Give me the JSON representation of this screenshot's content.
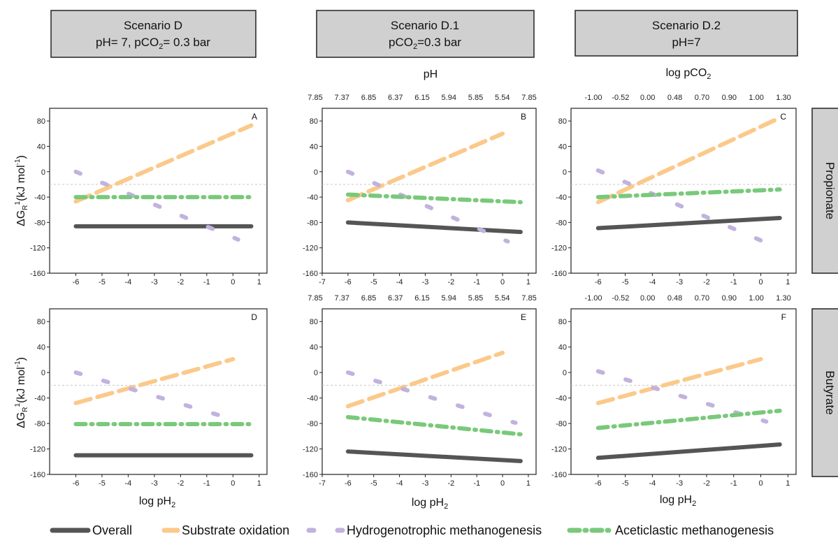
{
  "headers": [
    {
      "title": "Scenario D",
      "line2_pre": "pH= 7, pCO",
      "line2_sub": "2",
      "line2_post": "= 0.3 bar"
    },
    {
      "title": "Scenario D.1",
      "line2_pre": "pCO",
      "line2_sub": "2",
      "line2_post": "=0.3 bar"
    },
    {
      "title": "Scenario D.2",
      "line2_pre": "pH=7",
      "line2_sub": "",
      "line2_post": ""
    }
  ],
  "top_axis_titles": {
    "ph": "pH",
    "logpco2_pre": "log pCO",
    "logpco2_sub": "2"
  },
  "top_ticks": {
    "ph": [
      "7.85",
      "7.37",
      "6.85",
      "6.37",
      "6.15",
      "5.94",
      "5.85",
      "5.54",
      "7.85"
    ],
    "pco2": [
      "-1.00",
      "-0.52",
      "0.00",
      "0.48",
      "0.70",
      "0.90",
      "1.00",
      "1.30"
    ]
  },
  "row_labels": [
    "Propionate",
    "Butyrate"
  ],
  "ylabel": {
    "pre": "ΔG",
    "sub": "R",
    "sup": "1",
    "post": "(kJ mol",
    "sup2": "-1",
    "end": ")"
  },
  "xlabel": {
    "pre": "log pH",
    "sub": "2"
  },
  "legend": [
    {
      "label": "Overall",
      "color": "#555555",
      "style": "solid"
    },
    {
      "label": "Substrate oxidation",
      "color": "#fbc98a",
      "style": "dash"
    },
    {
      "label": "Hydrogenotrophic methanogenesis",
      "color": "#c1b2de",
      "style": "dot"
    },
    {
      "label": "Aceticlastic methanogenesis",
      "color": "#79c97a",
      "style": "dashdot"
    }
  ],
  "chart_data": [
    {
      "panel": "A",
      "type": "line",
      "xlabel": "",
      "ylabel": "",
      "xticks_shown": [
        -6,
        -5,
        -4,
        -3,
        -2,
        -1,
        0,
        1
      ],
      "ylim": [
        -160,
        100
      ],
      "yticks": [
        80,
        40,
        0,
        -40,
        -80,
        -120,
        -160
      ],
      "reference_line_y": -20,
      "series": [
        {
          "name": "Overall",
          "x": [
            -6,
            0.7
          ],
          "y": [
            -86,
            -86
          ]
        },
        {
          "name": "Substrate oxidation",
          "x": [
            -6,
            0.7
          ],
          "y": [
            -47,
            73
          ]
        },
        {
          "name": "Hydrogenotrophic methanogenesis",
          "x": [
            -6,
            0.2
          ],
          "y": [
            0,
            -107
          ]
        },
        {
          "name": "Aceticlastic methanogenesis",
          "x": [
            -6,
            0.7
          ],
          "y": [
            -40,
            -40
          ]
        }
      ]
    },
    {
      "panel": "B",
      "type": "line",
      "xticks_shown": [
        -7,
        -6,
        -5,
        -4,
        -3,
        -2,
        -1,
        0,
        1
      ],
      "ylim": [
        -160,
        100
      ],
      "yticks": [
        80,
        40,
        0,
        -40,
        -80,
        -120,
        -160
      ],
      "reference_line_y": -20,
      "series": [
        {
          "name": "Overall",
          "x": [
            -6,
            0.7
          ],
          "y": [
            -80,
            -95
          ]
        },
        {
          "name": "Substrate oxidation",
          "x": [
            -6,
            0.0
          ],
          "y": [
            -45,
            60
          ]
        },
        {
          "name": "Hydrogenotrophic methanogenesis",
          "x": [
            -6,
            0.2
          ],
          "y": [
            0,
            -110
          ]
        },
        {
          "name": "Aceticlastic methanogenesis",
          "x": [
            -6,
            0.7
          ],
          "y": [
            -36,
            -48
          ]
        }
      ]
    },
    {
      "panel": "C",
      "type": "line",
      "xticks_shown": [
        -6,
        -5,
        -4,
        -3,
        -2,
        -1,
        0,
        1
      ],
      "ylim": [
        -160,
        100
      ],
      "yticks": [
        80,
        40,
        0,
        -40,
        -80,
        -120,
        -160
      ],
      "reference_line_y": -20,
      "series": [
        {
          "name": "Overall",
          "x": [
            -6,
            0.7
          ],
          "y": [
            -89,
            -73
          ]
        },
        {
          "name": "Substrate oxidation",
          "x": [
            -6,
            0.7
          ],
          "y": [
            -48,
            85
          ]
        },
        {
          "name": "Hydrogenotrophic methanogenesis",
          "x": [
            -6,
            0.2
          ],
          "y": [
            2,
            -112
          ]
        },
        {
          "name": "Aceticlastic methanogenesis",
          "x": [
            -6,
            0.7
          ],
          "y": [
            -40,
            -28
          ]
        }
      ]
    },
    {
      "panel": "D",
      "type": "line",
      "xticks_shown": [
        -6,
        -5,
        -4,
        -3,
        -2,
        -1,
        0,
        1
      ],
      "ylim": [
        -160,
        100
      ],
      "yticks": [
        80,
        40,
        0,
        -40,
        -80,
        -120,
        -160
      ],
      "reference_line_y": -20,
      "series": [
        {
          "name": "Overall",
          "x": [
            -6,
            0.7
          ],
          "y": [
            -130,
            -130
          ]
        },
        {
          "name": "Substrate oxidation",
          "x": [
            -6,
            0.0
          ],
          "y": [
            -48,
            21
          ]
        },
        {
          "name": "Hydrogenotrophic methanogenesis",
          "x": [
            -6,
            0.2
          ],
          "y": [
            0,
            -76
          ]
        },
        {
          "name": "Aceticlastic methanogenesis",
          "x": [
            -6,
            0.7
          ],
          "y": [
            -81,
            -81
          ]
        }
      ]
    },
    {
      "panel": "E",
      "type": "line",
      "xticks_shown": [
        -7,
        -6,
        -5,
        -4,
        -3,
        -2,
        -1,
        0,
        1
      ],
      "ylim": [
        -160,
        100
      ],
      "yticks": [
        80,
        40,
        0,
        -40,
        -80,
        -120,
        -160
      ],
      "reference_line_y": -20,
      "series": [
        {
          "name": "Overall",
          "x": [
            -6,
            0.7
          ],
          "y": [
            -124,
            -139
          ]
        },
        {
          "name": "Substrate oxidation",
          "x": [
            -6,
            0.0
          ],
          "y": [
            -53,
            31
          ]
        },
        {
          "name": "Hydrogenotrophic methanogenesis",
          "x": [
            -6,
            0.5
          ],
          "y": [
            0,
            -79
          ]
        },
        {
          "name": "Aceticlastic methanogenesis",
          "x": [
            -6,
            0.7
          ],
          "y": [
            -70,
            -97
          ]
        }
      ]
    },
    {
      "panel": "F",
      "type": "line",
      "xticks_shown": [
        -6,
        -5,
        -4,
        -3,
        -2,
        -1,
        0,
        1
      ],
      "ylim": [
        -160,
        100
      ],
      "yticks": [
        80,
        40,
        0,
        -40,
        -80,
        -120,
        -160
      ],
      "reference_line_y": -20,
      "series": [
        {
          "name": "Overall",
          "x": [
            -6,
            0.7
          ],
          "y": [
            -134,
            -113
          ]
        },
        {
          "name": "Substrate oxidation",
          "x": [
            -6,
            0.0
          ],
          "y": [
            -48,
            21
          ]
        },
        {
          "name": "Hydrogenotrophic methanogenesis",
          "x": [
            -6,
            0.2
          ],
          "y": [
            2,
            -77
          ]
        },
        {
          "name": "Aceticlastic methanogenesis",
          "x": [
            -6,
            0.7
          ],
          "y": [
            -87,
            -60
          ]
        }
      ]
    }
  ]
}
